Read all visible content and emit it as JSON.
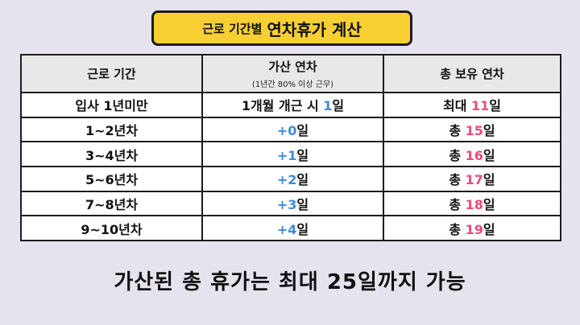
{
  "title": {
    "prefix": "근로 기간별",
    "main": "연차휴가 계산"
  },
  "table": {
    "headers": {
      "period": "근로 기간",
      "added": "가산 연차",
      "added_note": "(1년간 80% 이상 근무)",
      "total": "총 보유 연차"
    },
    "rows": [
      {
        "period": "입사 1년미만",
        "added_pre": "1개월 개근 시 ",
        "added_num": "1",
        "added_suf": "일",
        "total_pre": "최대 ",
        "total_num": "11",
        "total_suf": "일"
      },
      {
        "period": "1~2년차",
        "added_pre": "",
        "added_num": "+0",
        "added_suf": "일",
        "total_pre": "총 ",
        "total_num": "15",
        "total_suf": "일"
      },
      {
        "period": "3~4년차",
        "added_pre": "",
        "added_num": "+1",
        "added_suf": "일",
        "total_pre": "총 ",
        "total_num": "16",
        "total_suf": "일"
      },
      {
        "period": "5~6년차",
        "added_pre": "",
        "added_num": "+2",
        "added_suf": "일",
        "total_pre": "총 ",
        "total_num": "17",
        "total_suf": "일"
      },
      {
        "period": "7~8년차",
        "added_pre": "",
        "added_num": "+3",
        "added_suf": "일",
        "total_pre": "총 ",
        "total_num": "18",
        "total_suf": "일"
      },
      {
        "period": "9~10년차",
        "added_pre": "",
        "added_num": "+4",
        "added_suf": "일",
        "total_pre": "총 ",
        "total_num": "19",
        "total_suf": "일"
      }
    ]
  },
  "footer_note": "가산된 총 휴가는 최대 25일까지 가능",
  "colors": {
    "title_bg": "#f8cf33",
    "added_accent": "#3d8bd8",
    "total_accent": "#ee4a79",
    "page_bg": "#e6e3ef"
  }
}
